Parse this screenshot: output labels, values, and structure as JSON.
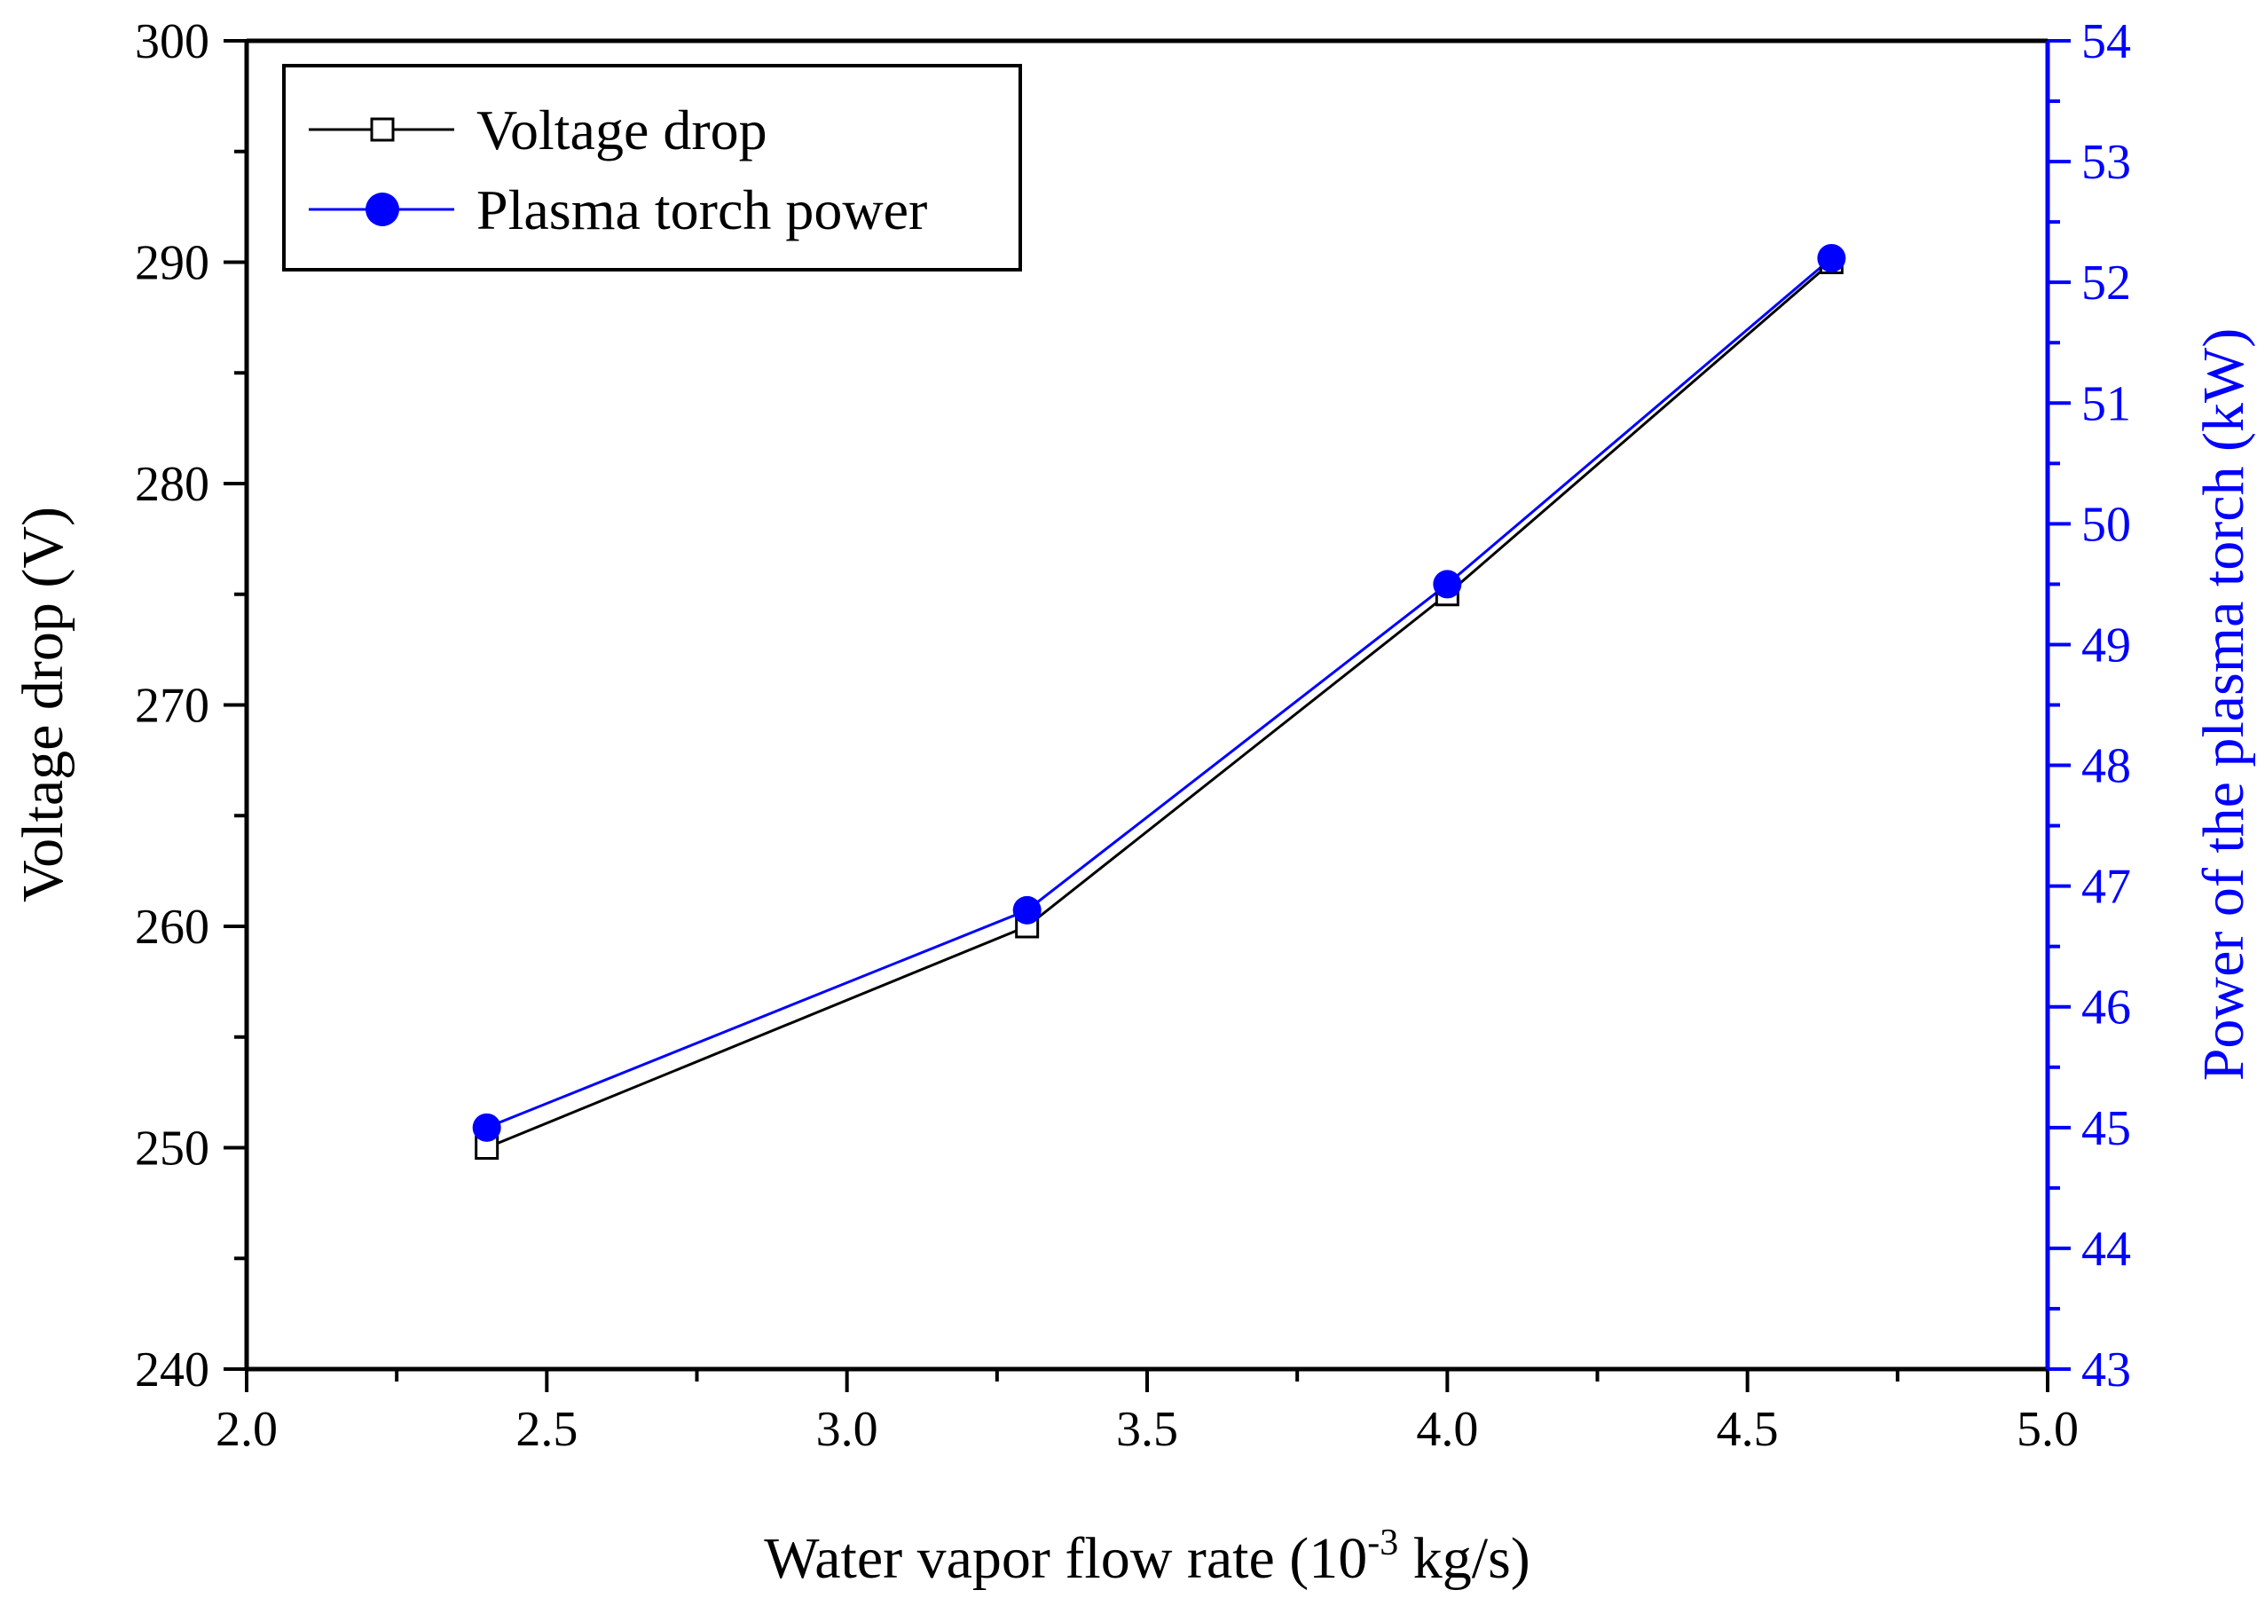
{
  "chart_data": {
    "type": "line",
    "title": "",
    "xlabel": {
      "prefix": "Water vapor flow rate (10",
      "superscript": "-3",
      "suffix": " kg/s)"
    },
    "ylabel_left": "Voltage drop (V)",
    "ylabel_right": "Power of the plasma torch (kW)",
    "xlim": [
      2.0,
      5.0
    ],
    "ylim_left": [
      240,
      300
    ],
    "ylim_right": [
      43,
      54
    ],
    "x_ticks": [
      "2.0",
      "2.5",
      "3.0",
      "3.5",
      "4.0",
      "4.5",
      "5.0"
    ],
    "y_left_ticks": [
      "240",
      "250",
      "260",
      "270",
      "280",
      "290",
      "300"
    ],
    "y_right_ticks": [
      "43",
      "44",
      "45",
      "46",
      "47",
      "48",
      "49",
      "50",
      "51",
      "52",
      "53",
      "54"
    ],
    "legend_position": "top-left",
    "series": [
      {
        "name": "Voltage drop",
        "axis": "left",
        "color": "#000000",
        "marker": "open-square",
        "x": [
          2.4,
          3.3,
          4.0,
          4.64
        ],
        "y": [
          250,
          260,
          275,
          290
        ]
      },
      {
        "name": "Plasma torch power",
        "axis": "right",
        "color": "#0000ff",
        "marker": "filled-circle",
        "x": [
          2.4,
          3.3,
          4.0,
          4.64
        ],
        "y": [
          45.0,
          46.8,
          49.5,
          52.2
        ]
      }
    ]
  }
}
